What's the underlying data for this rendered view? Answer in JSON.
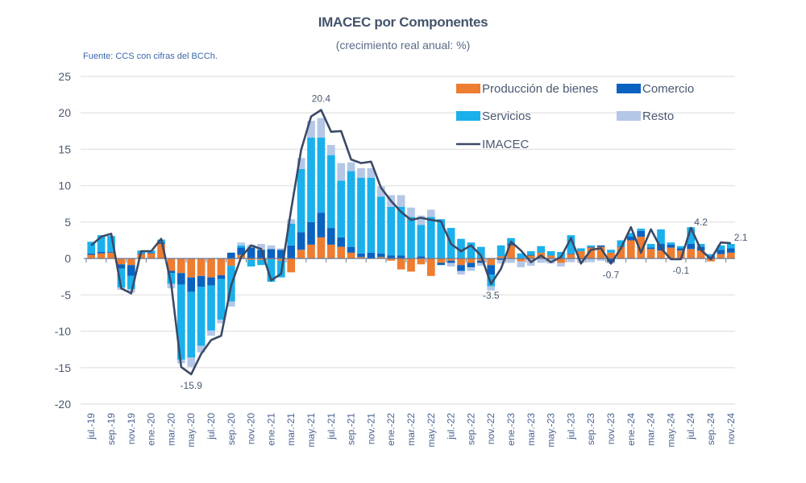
{
  "chart_data": {
    "type": "bar",
    "stacked": true,
    "title": "IMACEC por Componentes",
    "subtitle": "(crecimiento real anual: %)",
    "source": "Fuente: CCS con cifras del BCCh.",
    "xlabel": "",
    "ylabel": "",
    "ylim": [
      -20,
      25
    ],
    "yticks": [
      25,
      20,
      15,
      10,
      5,
      0,
      -5,
      -10,
      -15,
      -20
    ],
    "grid": true,
    "legend_position": "top-right",
    "colors": {
      "produccion": "#ed7d31",
      "comercio": "#0a62c0",
      "servicios": "#1ab0ec",
      "resto": "#b4c7e7",
      "imacec": "#3b4a66"
    },
    "legend": [
      {
        "key": "produccion",
        "label": "Producción de bienes"
      },
      {
        "key": "comercio",
        "label": "Comercio"
      },
      {
        "key": "servicios",
        "label": "Servicios"
      },
      {
        "key": "resto",
        "label": "Resto"
      },
      {
        "key": "imacec",
        "label": "IMACEC"
      }
    ],
    "x_tick_labels": [
      "jul.-19",
      "sep.-19",
      "nov.-19",
      "ene.-20",
      "mar.-20",
      "may.-20",
      "jul.-20",
      "sep.-20",
      "nov.-20",
      "ene.-21",
      "mar.-21",
      "may.-21",
      "jul.-21",
      "sep.-21",
      "nov.-21",
      "ene.-22",
      "mar.-22",
      "may.-22",
      "jul.-22",
      "sep.-22",
      "nov.-22",
      "ene.-23",
      "mar.-23",
      "may.-23",
      "jul.-23",
      "sep.-23",
      "nov.-23",
      "ene.-24",
      "mar.-24",
      "may.-24",
      "jul.-24",
      "sep.-24",
      "nov.-24"
    ],
    "months": [
      "jul.-19",
      "ago.-19",
      "sep.-19",
      "oct.-19",
      "nov.-19",
      "dic.-19",
      "ene.-20",
      "feb.-20",
      "mar.-20",
      "abr.-20",
      "may.-20",
      "jun.-20",
      "jul.-20",
      "ago.-20",
      "sep.-20",
      "oct.-20",
      "nov.-20",
      "dic.-20",
      "ene.-21",
      "feb.-21",
      "mar.-21",
      "abr.-21",
      "may.-21",
      "jun.-21",
      "jul.-21",
      "ago.-21",
      "sep.-21",
      "oct.-21",
      "nov.-21",
      "dic.-21",
      "ene.-22",
      "feb.-22",
      "mar.-22",
      "abr.-22",
      "may.-22",
      "jun.-22",
      "jul.-22",
      "ago.-22",
      "sep.-22",
      "oct.-22",
      "nov.-22",
      "dic.-22",
      "ene.-23",
      "feb.-23",
      "mar.-23",
      "abr.-23",
      "may.-23",
      "jun.-23",
      "jul.-23",
      "ago.-23",
      "sep.-23",
      "oct.-23",
      "nov.-23",
      "dic.-23",
      "ene.-24",
      "feb.-24",
      "mar.-24",
      "abr.-24",
      "may.-24",
      "jun.-24",
      "jul.-24",
      "ago.-24",
      "sep.-24",
      "oct.-24",
      "nov.-24"
    ],
    "series": [
      {
        "name": "Producción de bienes",
        "key": "produccion",
        "values": [
          0.5,
          0.7,
          0.8,
          -0.8,
          -0.9,
          0.6,
          0.7,
          2.0,
          -1.7,
          -2.0,
          -2.6,
          -2.4,
          -2.6,
          -2.3,
          -1.0,
          0.5,
          -0.2,
          -0.2,
          -0.1,
          -0.3,
          -1.9,
          1.2,
          1.9,
          2.9,
          1.9,
          1.6,
          0.8,
          0.2,
          0.0,
          0.2,
          -0.3,
          -1.5,
          -1.8,
          -0.8,
          -2.4,
          -0.6,
          -0.3,
          -0.9,
          -0.6,
          -0.3,
          -0.9,
          0.3,
          1.8,
          -0.4,
          0.4,
          0.8,
          0.4,
          -0.6,
          0.6,
          1.0,
          1.5,
          1.6,
          0.8,
          1.6,
          2.5,
          3.0,
          1.3,
          1.1,
          1.5,
          1.1,
          1.3,
          1.1,
          -0.4,
          0.6,
          0.8
        ]
      },
      {
        "name": "Comercio",
        "key": "comercio",
        "values": [
          0.2,
          0.2,
          0.1,
          -0.6,
          -1.5,
          0.1,
          0.1,
          0.2,
          -0.3,
          -1.6,
          -2.0,
          -1.5,
          -1.1,
          -0.5,
          0.8,
          1.0,
          1.5,
          1.2,
          1.3,
          1.2,
          1.8,
          2.4,
          3.1,
          3.4,
          2.3,
          1.3,
          0.8,
          0.5,
          0.8,
          0.5,
          0.4,
          0.4,
          0.1,
          0.3,
          0.1,
          -0.3,
          -0.3,
          -0.8,
          -0.6,
          -0.3,
          -1.3,
          -0.2,
          0.2,
          0.0,
          0.1,
          0.0,
          0.0,
          0.1,
          0.1,
          -0.1,
          0.1,
          0.2,
          -0.5,
          0.1,
          0.5,
          0.8,
          0.2,
          0.9,
          0.4,
          0.3,
          0.7,
          0.5,
          0.3,
          0.6,
          0.6
        ]
      },
      {
        "name": "Servicios",
        "key": "servicios",
        "values": [
          1.6,
          2.3,
          2.2,
          -2.6,
          -1.8,
          0.4,
          0.3,
          0.4,
          -1.5,
          -10.3,
          -9.0,
          -8.1,
          -6.2,
          -5.6,
          -4.9,
          0.3,
          -0.9,
          -0.7,
          -3.1,
          -2.3,
          3.0,
          8.7,
          11.6,
          10.3,
          10.0,
          7.8,
          10.4,
          10.4,
          10.3,
          7.8,
          6.7,
          6.7,
          5.6,
          4.3,
          5.6,
          5.4,
          4.2,
          2.7,
          2.2,
          1.6,
          -1.6,
          1.5,
          0.8,
          0.7,
          0.5,
          0.9,
          0.6,
          0.8,
          2.5,
          0.4,
          0.2,
          0.0,
          0.4,
          0.8,
          0.5,
          0.3,
          0.5,
          2.0,
          0.3,
          0.3,
          2.3,
          0.4,
          0.3,
          0.6,
          0.6
        ]
      },
      {
        "name": "Resto",
        "key": "resto",
        "values": [
          0.0,
          0.0,
          0.0,
          -0.3,
          -0.5,
          0.0,
          0.0,
          0.0,
          -0.6,
          -0.5,
          -1.3,
          -0.9,
          -0.7,
          -0.5,
          -0.7,
          0.4,
          0.4,
          0.8,
          0.5,
          0.2,
          0.6,
          1.5,
          2.3,
          2.7,
          1.4,
          2.4,
          1.2,
          1.3,
          1.3,
          1.4,
          1.6,
          1.6,
          1.3,
          1.3,
          1.0,
          0.0,
          -0.5,
          -0.5,
          -0.5,
          -0.4,
          -0.6,
          -0.5,
          -0.6,
          -0.8,
          -1.0,
          -0.6,
          -0.7,
          -0.5,
          -0.5,
          -0.5,
          -0.5,
          -0.3,
          -0.2,
          0.0,
          0.0,
          0.0,
          0.0,
          0.0,
          0.0,
          0.0,
          0.0,
          0.0,
          0.0,
          0.0,
          0.0
        ]
      },
      {
        "name": "IMACEC",
        "key": "imacec",
        "type": "line",
        "values": [
          1.8,
          3.0,
          3.4,
          -4.1,
          -4.8,
          1.0,
          1.0,
          2.7,
          -3.5,
          -14.9,
          -15.9,
          -13.1,
          -11.2,
          -10.6,
          -3.7,
          0.2,
          1.8,
          1.3,
          -3.0,
          -2.1,
          6.7,
          14.9,
          19.5,
          20.4,
          17.4,
          17.5,
          13.6,
          13.1,
          13.3,
          9.7,
          7.9,
          6.4,
          5.3,
          5.6,
          5.3,
          5.1,
          2.0,
          1.0,
          1.8,
          0.4,
          -3.5,
          -1.4,
          2.3,
          1.1,
          -0.5,
          0.4,
          -0.5,
          0.2,
          2.8,
          -0.7,
          1.2,
          1.4,
          -0.7,
          1.4,
          4.3,
          0.8,
          4.0,
          1.4,
          -0.1,
          -0.1,
          4.2,
          1.2,
          -0.1,
          2.2,
          2.1
        ]
      }
    ],
    "annotations": [
      {
        "label": "20.4",
        "month": "jun.-21",
        "value": 20.4,
        "position": "above"
      },
      {
        "label": "-15.9",
        "month": "may.-20",
        "value": -15.9,
        "position": "below"
      },
      {
        "label": "-3.5",
        "month": "nov.-22",
        "value": -3.5,
        "position": "below"
      },
      {
        "label": "-0.7",
        "month": "nov.-23",
        "value": -0.7,
        "position": "below"
      },
      {
        "label": "-0.1",
        "month": "jun.-24",
        "value": -0.1,
        "position": "below"
      },
      {
        "label": "4.2",
        "month": "jul.-24",
        "value": 4.2,
        "position": "right"
      },
      {
        "label": "2.1",
        "month": "nov.-24",
        "value": 2.1,
        "position": "right"
      }
    ]
  }
}
